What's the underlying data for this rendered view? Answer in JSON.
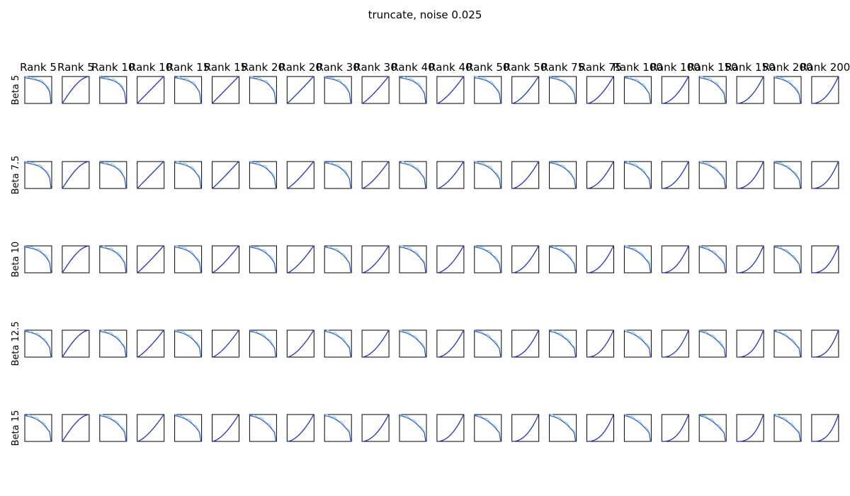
{
  "figure": {
    "title": "truncate, noise 0.025"
  },
  "chart_data": {
    "type": "line",
    "title": "truncate, noise 0.025",
    "columns": [
      "Rank 5",
      "Rank 5",
      "Rank 10",
      "Rank 10",
      "Rank 15",
      "Rank 15",
      "Rank 20",
      "Rank 20",
      "Rank 30",
      "Rank 30",
      "Rank 40",
      "Rank 40",
      "Rank 50",
      "Rank 50",
      "Rank 75",
      "Rank 75",
      "Rank 100",
      "Rank 100",
      "Rank 150",
      "Rank 150",
      "Rank 200",
      "Rank 200"
    ],
    "rows": [
      "Beta 5",
      "Beta 7.5",
      "Beta 10",
      "Beta 12.5",
      "Beta 15"
    ],
    "panel_kinds": [
      "decreasing",
      "increasing"
    ],
    "colors": {
      "light_series": "#3fc6ee",
      "dark_series": "#1f2fd8",
      "frame": "#000000"
    },
    "axes": {
      "ticks": "none",
      "grid": false,
      "xlim": [
        0,
        1
      ],
      "ylim": [
        0,
        1
      ]
    }
  }
}
